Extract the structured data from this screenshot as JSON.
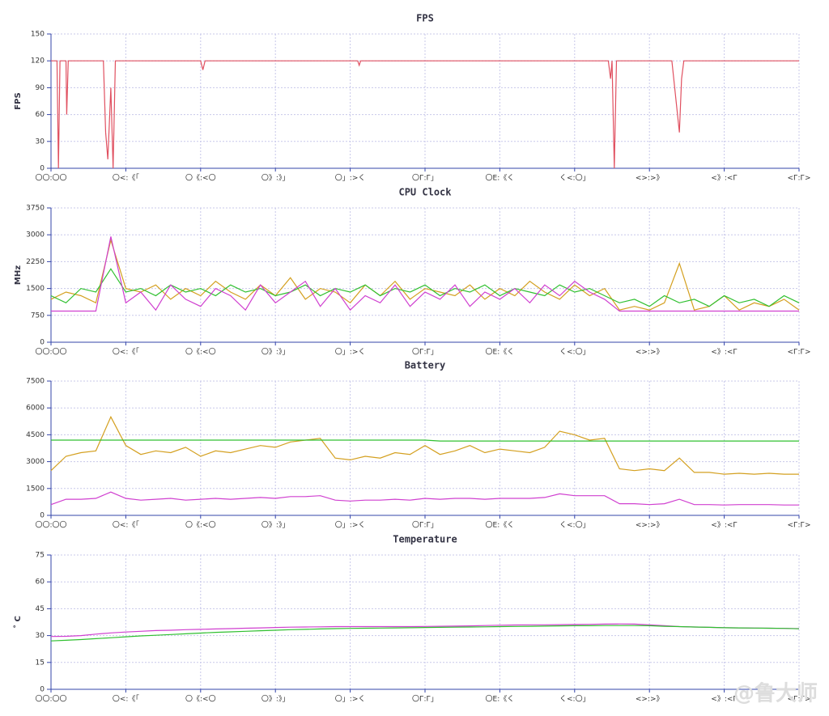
{
  "chart_data": [
    {
      "type": "line",
      "title": "FPS",
      "ylabel": "FPS",
      "x": [
        0,
        0.8,
        1,
        1.2,
        2,
        2.1,
        2.3,
        3.5,
        7,
        7.3,
        7.6,
        8,
        8.3,
        8.6,
        9,
        10,
        20,
        20.3,
        20.6,
        30,
        41,
        41.2,
        41.4,
        50,
        60,
        74.5,
        74.8,
        75,
        75.3,
        75.6,
        76,
        83,
        84,
        84.3,
        84.6,
        85,
        90,
        100
      ],
      "series": [
        {
          "color": "#e05060",
          "values": [
            120,
            120,
            0,
            120,
            120,
            60,
            120,
            120,
            120,
            40,
            10,
            90,
            0,
            120,
            120,
            120,
            120,
            110,
            120,
            120,
            120,
            115,
            120,
            120,
            120,
            120,
            100,
            120,
            0,
            120,
            120,
            120,
            40,
            100,
            120,
            120,
            120,
            120
          ]
        }
      ],
      "xlim": [
        0,
        100
      ],
      "xticks": [
        {
          "value": 0,
          "label": "〇〇:〇〇"
        },
        {
          "value": 10,
          "label": "〇<:《「"
        },
        {
          "value": 20,
          "label": "〇《:<〇"
        },
        {
          "value": 30,
          "label": "〇》:》」"
        },
        {
          "value": 40,
          "label": "〇」:>く"
        },
        {
          "value": 50,
          "label": "〇Г:Г」"
        },
        {
          "value": 60,
          "label": "〇Ε:《く"
        },
        {
          "value": 70,
          "label": "く<:〇」"
        },
        {
          "value": 80,
          "label": "<>:>》"
        },
        {
          "value": 90,
          "label": "<》:<Г"
        },
        {
          "value": 100,
          "label": "<Г:Г>"
        }
      ],
      "ylim": [
        0,
        150
      ],
      "yticks": [
        0,
        30,
        60,
        90,
        120,
        150
      ],
      "grid": true
    },
    {
      "type": "line",
      "title": "CPU Clock",
      "ylabel": "MHz",
      "x": [
        0,
        2,
        4,
        6,
        8,
        10,
        12,
        14,
        16,
        18,
        20,
        22,
        24,
        26,
        28,
        30,
        32,
        34,
        36,
        38,
        40,
        42,
        44,
        46,
        48,
        50,
        52,
        54,
        56,
        58,
        60,
        62,
        64,
        66,
        68,
        70,
        72,
        74,
        76,
        78,
        80,
        82,
        84,
        86,
        88,
        90,
        92,
        94,
        96,
        98,
        100
      ],
      "series": [
        {
          "color": "#d4a020",
          "values": [
            1200,
            1400,
            1300,
            1100,
            2850,
            1500,
            1400,
            1600,
            1200,
            1500,
            1300,
            1700,
            1400,
            1200,
            1600,
            1300,
            1800,
            1200,
            1500,
            1400,
            1100,
            1600,
            1300,
            1700,
            1200,
            1500,
            1400,
            1300,
            1600,
            1200,
            1500,
            1300,
            1700,
            1400,
            1200,
            1600,
            1300,
            1500,
            900,
            1000,
            900,
            1100,
            2200,
            900,
            1000,
            1300,
            900,
            1100,
            1000,
            1200,
            900
          ]
        },
        {
          "color": "#30c030",
          "values": [
            1300,
            1100,
            1500,
            1400,
            2050,
            1400,
            1500,
            1300,
            1600,
            1400,
            1500,
            1300,
            1600,
            1400,
            1500,
            1300,
            1400,
            1600,
            1300,
            1500,
            1400,
            1600,
            1300,
            1500,
            1400,
            1600,
            1300,
            1500,
            1400,
            1600,
            1300,
            1500,
            1400,
            1300,
            1600,
            1400,
            1500,
            1300,
            1100,
            1200,
            1000,
            1300,
            1100,
            1200,
            1000,
            1300,
            1100,
            1200,
            1000,
            1300,
            1100
          ]
        },
        {
          "color": "#d040d0",
          "values": [
            870,
            870,
            870,
            870,
            2950,
            1100,
            1400,
            900,
            1600,
            1200,
            1000,
            1500,
            1300,
            900,
            1600,
            1100,
            1400,
            1700,
            1000,
            1500,
            900,
            1300,
            1100,
            1600,
            1000,
            1400,
            1200,
            1600,
            1000,
            1400,
            1200,
            1500,
            1100,
            1600,
            1300,
            1700,
            1400,
            1200,
            870,
            870,
            870,
            870,
            870,
            870,
            870,
            870,
            870,
            870,
            870,
            870,
            870
          ]
        }
      ],
      "xlim": [
        0,
        100
      ],
      "xticks": [
        {
          "value": 0,
          "label": "〇〇:〇〇"
        },
        {
          "value": 10,
          "label": "〇<:《「"
        },
        {
          "value": 20,
          "label": "〇《:<〇"
        },
        {
          "value": 30,
          "label": "〇》:》」"
        },
        {
          "value": 40,
          "label": "〇」:>く"
        },
        {
          "value": 50,
          "label": "〇Г:Г」"
        },
        {
          "value": 60,
          "label": "〇Ε:《く"
        },
        {
          "value": 70,
          "label": "く<:〇」"
        },
        {
          "value": 80,
          "label": "<>:>》"
        },
        {
          "value": 90,
          "label": "<》:<Г"
        },
        {
          "value": 100,
          "label": "<Г:Г>"
        }
      ],
      "ylim": [
        0,
        3750
      ],
      "yticks": [
        0,
        750,
        1500,
        2250,
        3000,
        3750
      ],
      "grid": true
    },
    {
      "type": "line",
      "title": "Battery",
      "x": [
        0,
        2,
        4,
        6,
        8,
        10,
        12,
        14,
        16,
        18,
        20,
        22,
        24,
        26,
        28,
        30,
        32,
        34,
        36,
        38,
        40,
        42,
        44,
        46,
        48,
        50,
        52,
        54,
        56,
        58,
        60,
        62,
        64,
        66,
        68,
        70,
        72,
        74,
        76,
        78,
        80,
        82,
        84,
        86,
        88,
        90,
        92,
        94,
        96,
        98,
        100
      ],
      "series": [
        {
          "color": "#d4a020",
          "values": [
            2500,
            3300,
            3500,
            3600,
            5500,
            3900,
            3400,
            3600,
            3500,
            3800,
            3300,
            3600,
            3500,
            3700,
            3900,
            3800,
            4100,
            4200,
            4300,
            3200,
            3100,
            3300,
            3200,
            3500,
            3400,
            3900,
            3400,
            3600,
            3900,
            3500,
            3700,
            3600,
            3500,
            3800,
            4700,
            4500,
            4200,
            4300,
            2600,
            2500,
            2600,
            2500,
            3200,
            2400,
            2400,
            2300,
            2350,
            2300,
            2350,
            2300,
            2300
          ]
        },
        {
          "color": "#30c030",
          "values": [
            4200,
            4200,
            4200,
            4200,
            4200,
            4200,
            4200,
            4200,
            4200,
            4200,
            4200,
            4200,
            4200,
            4200,
            4200,
            4200,
            4200,
            4200,
            4200,
            4200,
            4200,
            4200,
            4200,
            4200,
            4200,
            4200,
            4150,
            4150,
            4150,
            4150,
            4150,
            4150,
            4150,
            4150,
            4150,
            4150,
            4150,
            4150,
            4150,
            4150,
            4150,
            4150,
            4150,
            4150,
            4150,
            4150,
            4150,
            4150,
            4150,
            4150,
            4150
          ]
        },
        {
          "color": "#d040d0",
          "values": [
            600,
            900,
            900,
            950,
            1300,
            950,
            850,
            900,
            950,
            850,
            900,
            950,
            900,
            950,
            1000,
            950,
            1050,
            1050,
            1100,
            850,
            800,
            850,
            850,
            900,
            850,
            950,
            900,
            950,
            950,
            900,
            950,
            950,
            950,
            1000,
            1200,
            1100,
            1100,
            1100,
            650,
            650,
            600,
            650,
            900,
            600,
            600,
            580,
            600,
            600,
            600,
            580,
            580
          ]
        }
      ],
      "xlim": [
        0,
        100
      ],
      "xticks": [
        {
          "value": 0,
          "label": "〇〇:〇〇"
        },
        {
          "value": 10,
          "label": "〇<:《「"
        },
        {
          "value": 20,
          "label": "〇《:<〇"
        },
        {
          "value": 30,
          "label": "〇》:》」"
        },
        {
          "value": 40,
          "label": "〇」:>く"
        },
        {
          "value": 50,
          "label": "〇Г:Г」"
        },
        {
          "value": 60,
          "label": "〇Ε:《く"
        },
        {
          "value": 70,
          "label": "く<:〇」"
        },
        {
          "value": 80,
          "label": "<>:>》"
        },
        {
          "value": 90,
          "label": "<》:<Г"
        },
        {
          "value": 100,
          "label": "<Г:Г>"
        }
      ],
      "ylim": [
        0,
        7500
      ],
      "yticks": [
        0,
        1500,
        3000,
        4500,
        6000,
        7500
      ],
      "grid": true
    },
    {
      "type": "line",
      "title": "Temperature",
      "ylabel": "˚ C",
      "x": [
        0,
        2,
        4,
        6,
        8,
        10,
        12,
        14,
        16,
        18,
        20,
        22,
        24,
        26,
        28,
        30,
        32,
        34,
        36,
        38,
        40,
        42,
        44,
        46,
        48,
        50,
        52,
        54,
        56,
        58,
        60,
        62,
        64,
        66,
        68,
        70,
        72,
        74,
        76,
        78,
        80,
        82,
        84,
        86,
        88,
        90,
        92,
        94,
        96,
        98,
        100
      ],
      "series": [
        {
          "color": "#d040d0",
          "values": [
            29.5,
            29.6,
            30,
            30.8,
            31.5,
            32,
            32.4,
            32.8,
            33,
            33.3,
            33.5,
            33.7,
            33.9,
            34.1,
            34.3,
            34.5,
            34.7,
            34.8,
            34.9,
            35,
            35,
            35,
            35,
            35,
            35,
            35.1,
            35.2,
            35.3,
            35.4,
            35.6,
            35.8,
            35.9,
            36,
            36,
            36.1,
            36.2,
            36.3,
            36.4,
            36.5,
            36.4,
            36,
            35.5,
            35,
            34.8,
            34.6,
            34.4,
            34.3,
            34.2,
            34.1,
            34,
            33.9
          ]
        },
        {
          "color": "#30c030",
          "values": [
            27,
            27.4,
            27.8,
            28.3,
            28.8,
            29.3,
            29.8,
            30.2,
            30.6,
            31,
            31.4,
            31.8,
            32.1,
            32.4,
            32.7,
            33,
            33.3,
            33.5,
            33.7,
            33.9,
            34,
            34.1,
            34.2,
            34.3,
            34.4,
            34.5,
            34.6,
            34.7,
            34.8,
            34.9,
            35,
            35.1,
            35.2,
            35.3,
            35.4,
            35.5,
            35.5,
            35.6,
            35.6,
            35.6,
            35.5,
            35.2,
            35,
            34.8,
            34.6,
            34.4,
            34.3,
            34.2,
            34.1,
            34,
            33.8
          ]
        }
      ],
      "xlim": [
        0,
        100
      ],
      "xticks": [
        {
          "value": 0,
          "label": "〇〇:〇〇"
        },
        {
          "value": 10,
          "label": "〇<:《「"
        },
        {
          "value": 20,
          "label": "〇《:<〇"
        },
        {
          "value": 30,
          "label": "〇》:》」"
        },
        {
          "value": 40,
          "label": "〇」:>く"
        },
        {
          "value": 50,
          "label": "〇Г:Г」"
        },
        {
          "value": 60,
          "label": "〇Ε:《く"
        },
        {
          "value": 70,
          "label": "く<:〇」"
        },
        {
          "value": 80,
          "label": "<>:>》"
        },
        {
          "value": 90,
          "label": "<》:<Г"
        },
        {
          "value": 100,
          "label": "<Г:Г>"
        }
      ],
      "ylim": [
        0,
        75
      ],
      "yticks": [
        0,
        15,
        30,
        45,
        60,
        75
      ],
      "grid": true
    }
  ],
  "watermark": "@鲁大师"
}
